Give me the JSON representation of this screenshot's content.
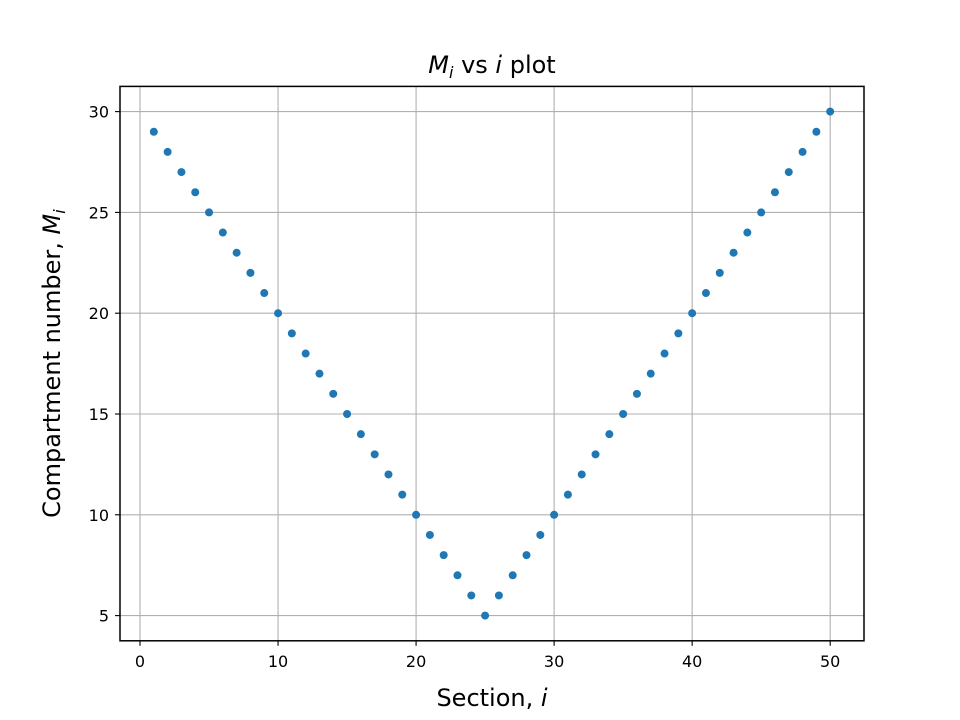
{
  "chart_data": {
    "type": "scatter",
    "title": {
      "main": "M",
      "main_sub": "i",
      "middle": " vs ",
      "var": "i",
      "tail": " plot"
    },
    "xlabel": {
      "text": "Section, ",
      "var": "i"
    },
    "ylabel": {
      "text": "Compartment number, ",
      "var": "M",
      "var_sub": "i"
    },
    "xlim": [
      -1.45,
      52.45
    ],
    "ylim": [
      3.75,
      31.25
    ],
    "xticks": [
      0,
      10,
      20,
      30,
      40,
      50
    ],
    "yticks": [
      5,
      10,
      15,
      20,
      25,
      30
    ],
    "grid": true,
    "marker_color": "#1f77b4",
    "grid_color": "#b0b0b0",
    "series": [
      {
        "x": [
          1,
          2,
          3,
          4,
          5,
          6,
          7,
          8,
          9,
          10,
          11,
          12,
          13,
          14,
          15,
          16,
          17,
          18,
          19,
          20,
          21,
          22,
          23,
          24,
          25,
          26,
          27,
          28,
          29,
          30,
          31,
          32,
          33,
          34,
          35,
          36,
          37,
          38,
          39,
          40,
          41,
          42,
          43,
          44,
          45,
          46,
          47,
          48,
          49,
          50
        ],
        "y": [
          29,
          28,
          27,
          26,
          25,
          24,
          23,
          22,
          21,
          20,
          19,
          18,
          17,
          16,
          15,
          14,
          13,
          12,
          11,
          10,
          9,
          8,
          7,
          6,
          5,
          6,
          7,
          8,
          9,
          10,
          11,
          12,
          13,
          14,
          15,
          16,
          17,
          18,
          19,
          20,
          21,
          22,
          23,
          24,
          25,
          26,
          27,
          28,
          29,
          30
        ]
      }
    ]
  }
}
